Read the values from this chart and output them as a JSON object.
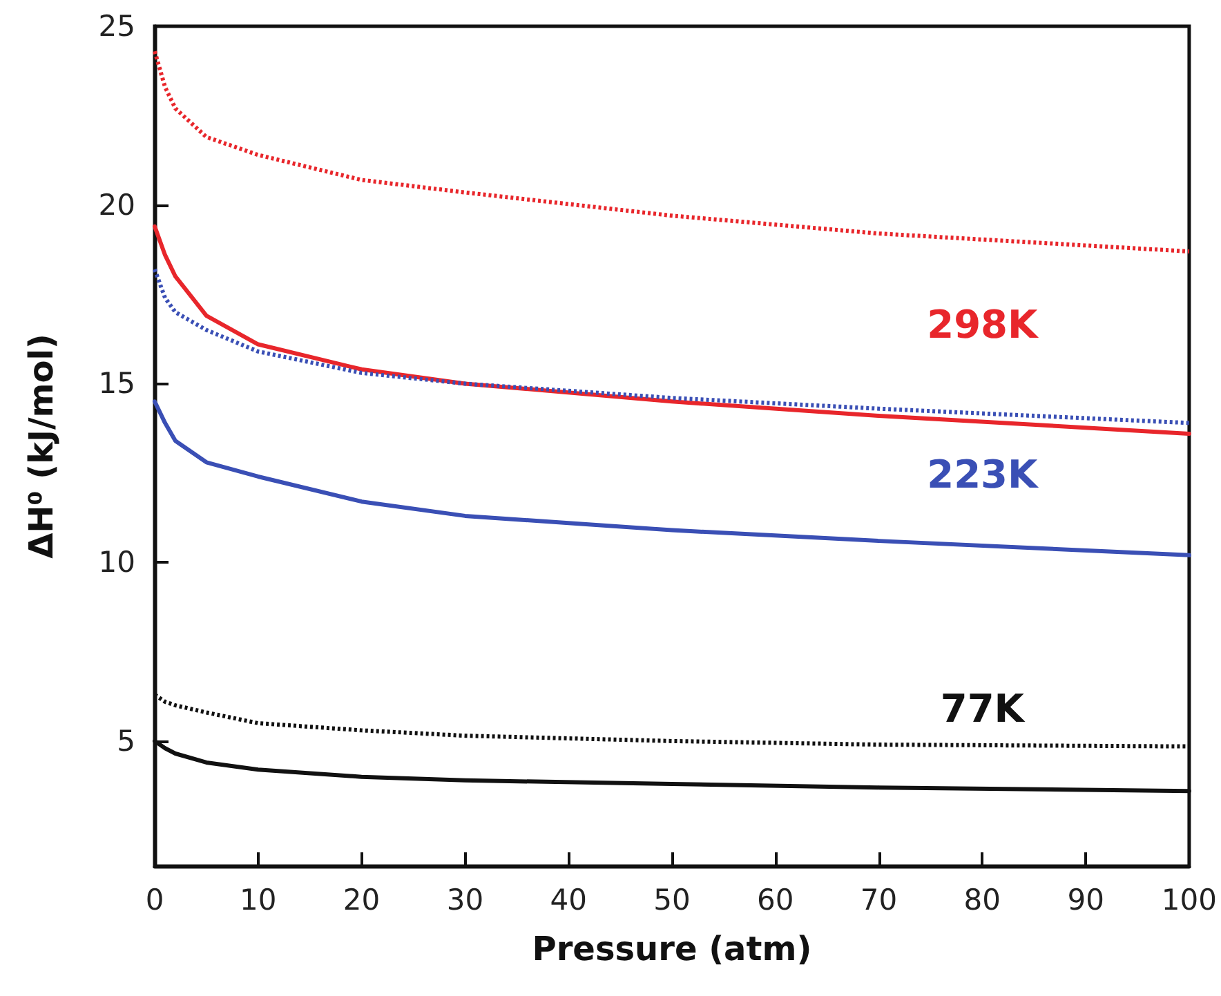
{
  "chart_data": {
    "type": "line",
    "xlabel": "Pressure (atm)",
    "ylabel": "ΔH⁰ (kJ/mol)",
    "xlim": [
      0,
      100
    ],
    "xticks": [
      0,
      10,
      20,
      30,
      40,
      50,
      60,
      70,
      80,
      90,
      100
    ],
    "ylim": [
      1.5,
      25
    ],
    "yticks": [
      5,
      10,
      15,
      20,
      25
    ],
    "grid": false,
    "legend": false,
    "marker": "none",
    "x": [
      0,
      1,
      2,
      5,
      10,
      20,
      30,
      50,
      70,
      100
    ],
    "series": [
      {
        "color": "#e8262b",
        "line_style": "dotted",
        "values": [
          24.3,
          23.3,
          22.7,
          21.9,
          21.4,
          20.7,
          20.35,
          19.7,
          19.2,
          18.7
        ]
      },
      {
        "color": "#e8262b",
        "line_style": "solid",
        "values": [
          19.4,
          18.6,
          18.0,
          16.9,
          16.1,
          15.4,
          15.0,
          14.5,
          14.1,
          13.6
        ]
      },
      {
        "color": "#3a4fb5",
        "line_style": "dotted",
        "values": [
          18.2,
          17.4,
          17.0,
          16.5,
          15.9,
          15.3,
          15.0,
          14.6,
          14.3,
          13.9
        ]
      },
      {
        "color": "#3a4fb5",
        "line_style": "solid",
        "values": [
          14.5,
          13.9,
          13.4,
          12.8,
          12.4,
          11.7,
          11.3,
          10.9,
          10.6,
          10.2
        ]
      },
      {
        "color": "#111111",
        "line_style": "dotted",
        "values": [
          6.3,
          6.1,
          6.0,
          5.8,
          5.5,
          5.3,
          5.15,
          5.0,
          4.9,
          4.85
        ]
      },
      {
        "color": "#111111",
        "line_style": "solid",
        "values": [
          5.0,
          4.8,
          4.65,
          4.4,
          4.2,
          4.0,
          3.9,
          3.8,
          3.7,
          3.6
        ]
      }
    ],
    "annotations": [
      "298K",
      "223K",
      "77K"
    ]
  }
}
